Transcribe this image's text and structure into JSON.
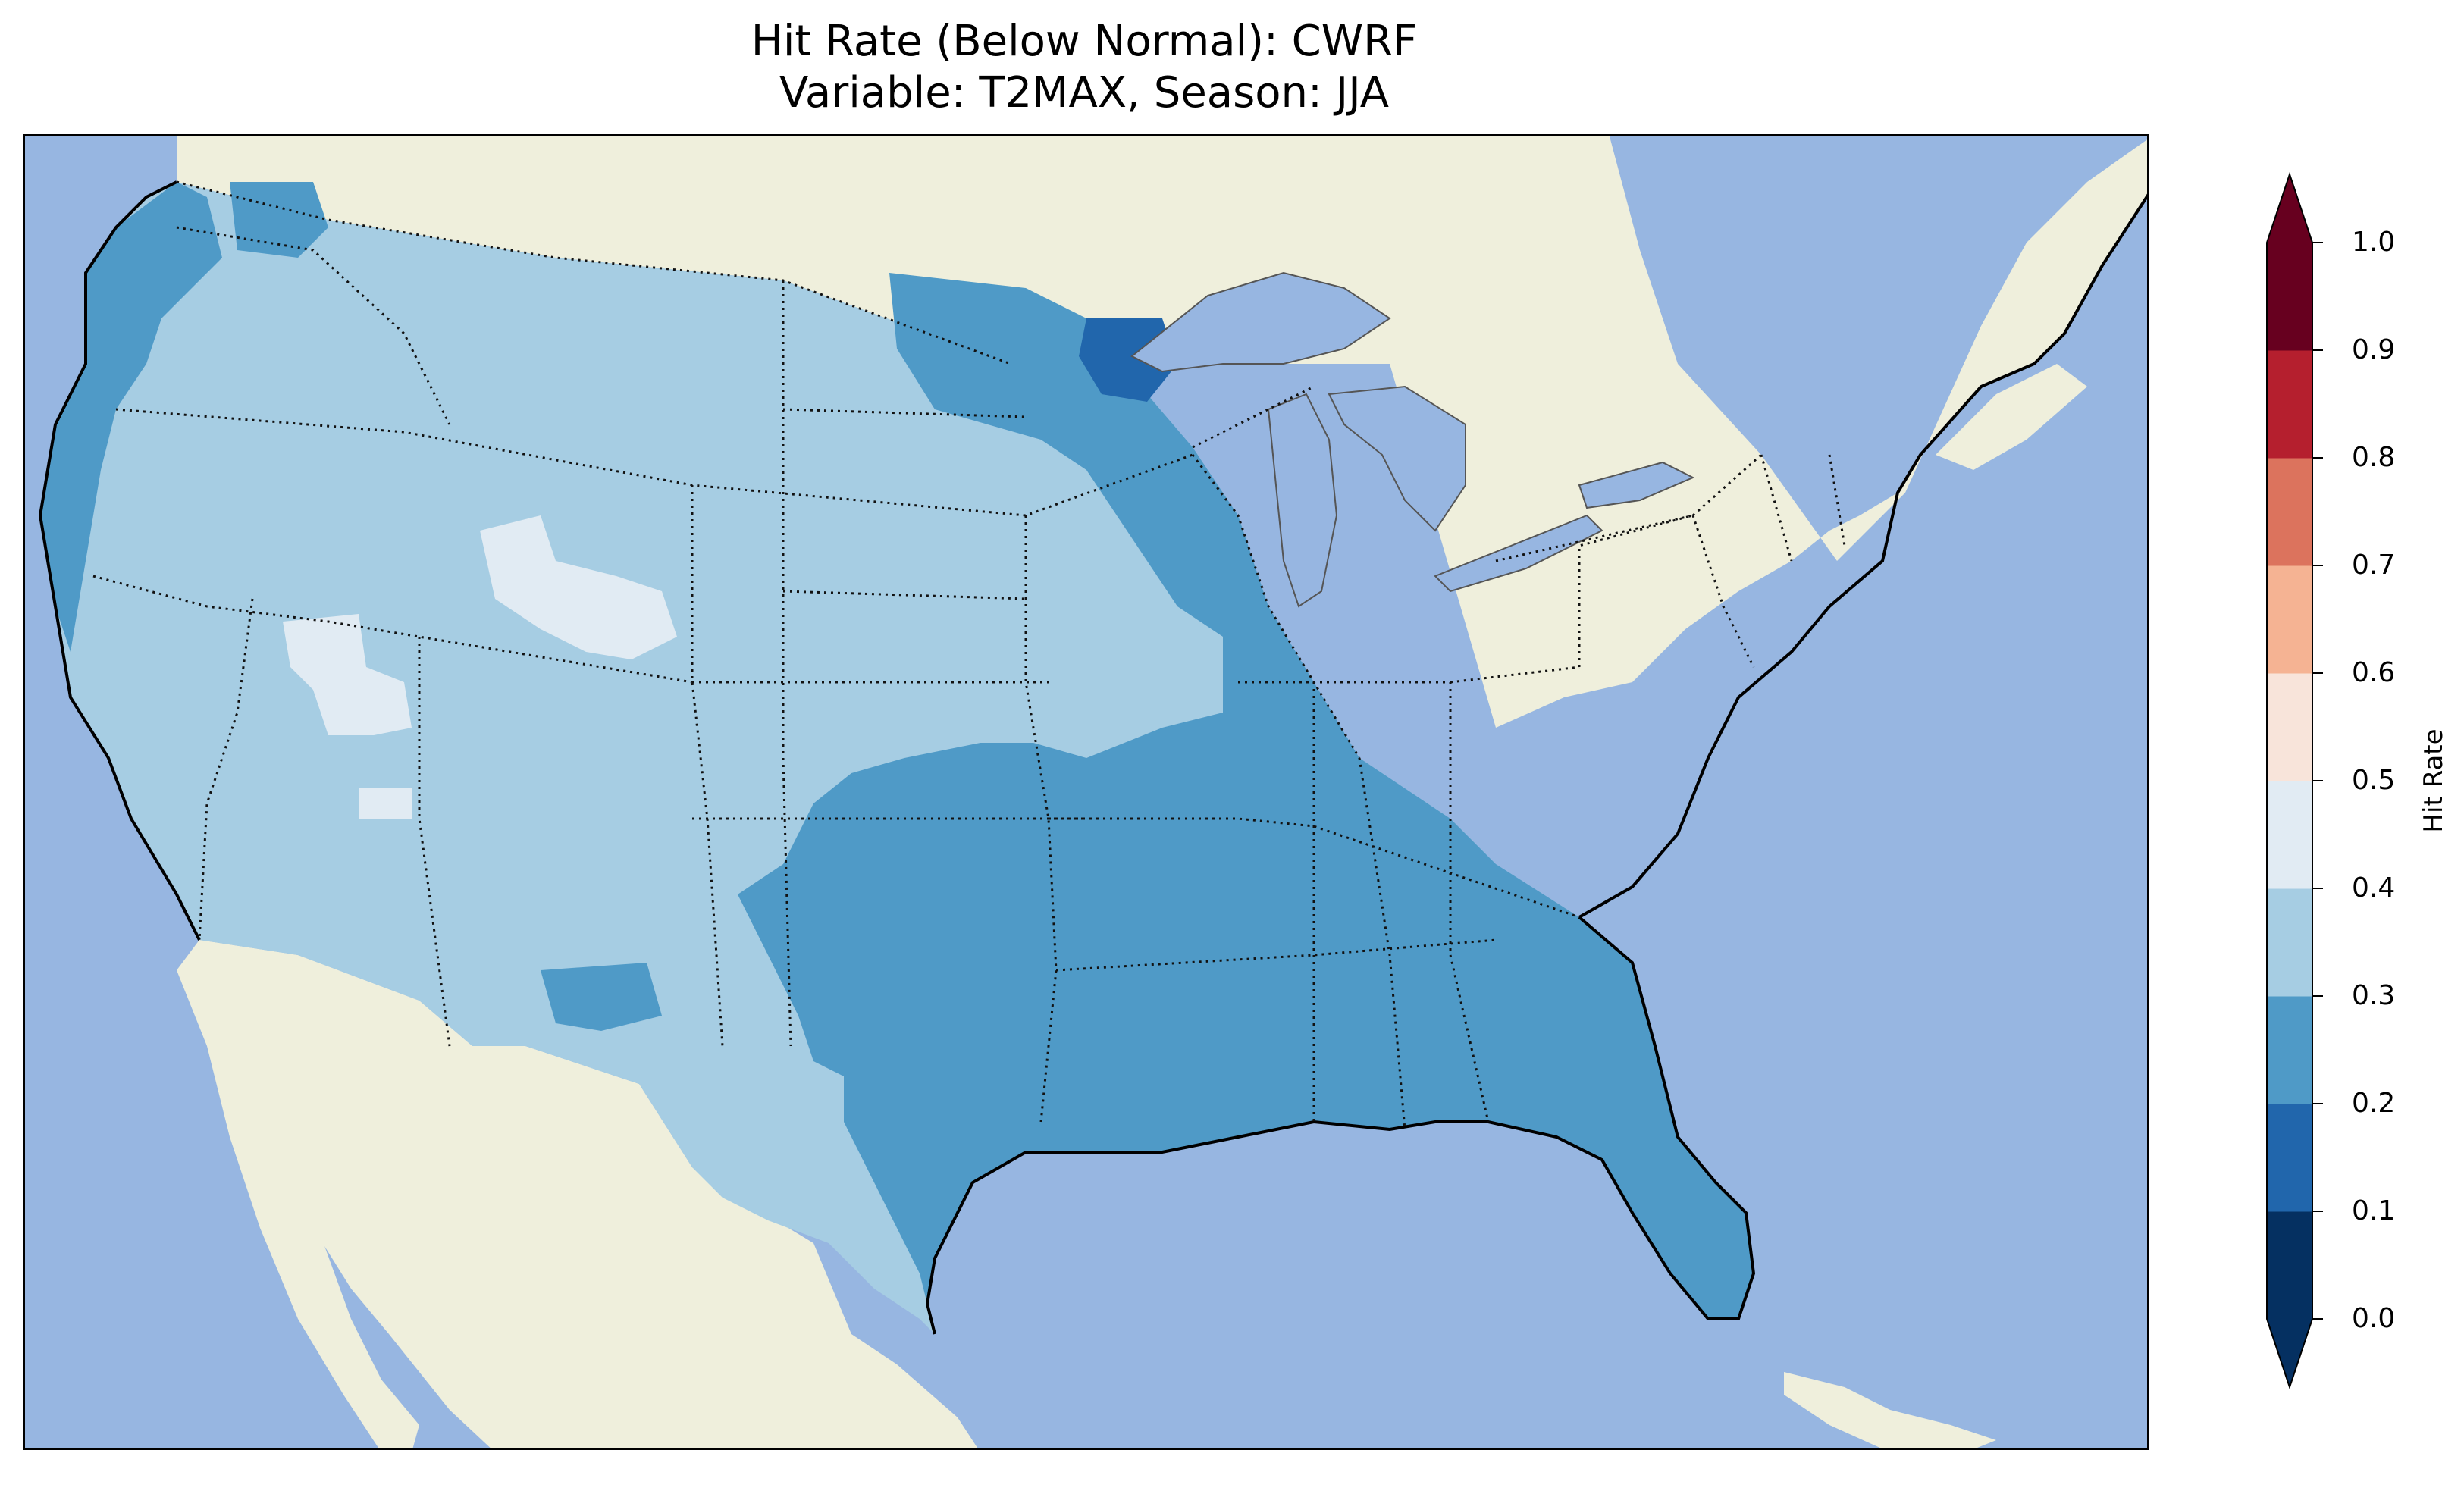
{
  "title": {
    "line1": "Hit Rate (Below Normal): CWRF",
    "line2": "Variable: T2MAX, Season: JJA"
  },
  "colors": {
    "ocean": "#97b6e1",
    "land": "#efefdc",
    "lakes": "#97b6e1"
  },
  "colorbar": {
    "label": "Hit Rate",
    "ticks": [
      "0.0",
      "0.1",
      "0.2",
      "0.3",
      "0.4",
      "0.5",
      "0.6",
      "0.7",
      "0.8",
      "0.9",
      "1.0"
    ],
    "bins": [
      {
        "range": [
          0.0,
          0.1
        ],
        "color": "#053061"
      },
      {
        "range": [
          0.1,
          0.2
        ],
        "color": "#2166ac"
      },
      {
        "range": [
          0.2,
          0.3
        ],
        "color": "#4f9ac7"
      },
      {
        "range": [
          0.3,
          0.4
        ],
        "color": "#a6cde3"
      },
      {
        "range": [
          0.4,
          0.5
        ],
        "color": "#e1ebf3"
      },
      {
        "range": [
          0.5,
          0.6
        ],
        "color": "#f8e4da"
      },
      {
        "range": [
          0.6,
          0.7
        ],
        "color": "#f5b393"
      },
      {
        "range": [
          0.7,
          0.8
        ],
        "color": "#dc735d"
      },
      {
        "range": [
          0.8,
          0.9
        ],
        "color": "#b51f2e"
      },
      {
        "range": [
          0.9,
          1.0
        ],
        "color": "#67001f"
      }
    ],
    "extend": "both"
  },
  "map_data": {
    "type": "choropleth",
    "region": "Contiguous United States",
    "field_bins": [
      {
        "range": "0.1-0.2",
        "area": "northern Minnesota near Lake Superior"
      },
      {
        "range": "0.2-0.3",
        "area": "Eastern and southern US, upper Midwest, northern Pacific coast"
      },
      {
        "range": "0.3-0.4",
        "area": "Western interior, Great Plains, Texas"
      },
      {
        "range": "0.4-0.5",
        "area": "Small patches in Wyoming, Nevada, Arizona"
      }
    ]
  }
}
